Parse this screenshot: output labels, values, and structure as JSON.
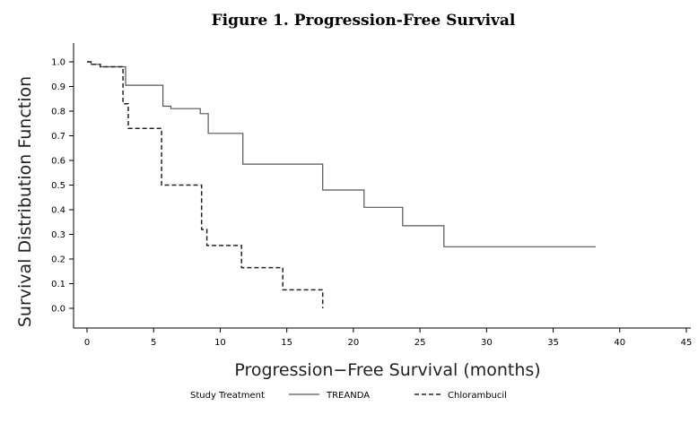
{
  "chart_data": {
    "type": "line",
    "title": "Figure 1.  Progression-Free Survival",
    "xlabel": "Progression−Free Survival (months)",
    "ylabel": "Survival Distribution Function",
    "xlim": [
      0,
      45
    ],
    "ylim": [
      0,
      1.0
    ],
    "xticks": [
      0,
      5,
      10,
      15,
      20,
      25,
      30,
      35,
      40,
      45
    ],
    "yticks": [
      0.0,
      0.1,
      0.2,
      0.3,
      0.4,
      0.5,
      0.6,
      0.7,
      0.8,
      0.9,
      1.0
    ],
    "grid": false,
    "legend": {
      "position": "bottom",
      "title": "Study Treatment"
    },
    "series": [
      {
        "name": "TREANDA",
        "style": "solid",
        "color": "#555555",
        "x": [
          0,
          0.3,
          0.3,
          1.0,
          1.0,
          2.9,
          2.9,
          5.7,
          5.7,
          6.3,
          6.3,
          8.5,
          8.5,
          9.1,
          9.1,
          11.7,
          11.7,
          17.7,
          17.7,
          20.8,
          20.8,
          23.7,
          23.7,
          26.8,
          26.8,
          38.2
        ],
        "y": [
          1.0,
          1.0,
          0.99,
          0.99,
          0.98,
          0.98,
          0.905,
          0.905,
          0.82,
          0.82,
          0.81,
          0.81,
          0.79,
          0.79,
          0.71,
          0.71,
          0.585,
          0.585,
          0.48,
          0.48,
          0.41,
          0.41,
          0.335,
          0.335,
          0.25,
          0.25
        ]
      },
      {
        "name": "Chlorambucil",
        "style": "dashed",
        "color": "#222222",
        "x": [
          0,
          0.3,
          0.3,
          1.0,
          1.0,
          2.7,
          2.7,
          3.1,
          3.1,
          5.6,
          5.6,
          8.6,
          8.6,
          9.0,
          9.0,
          11.6,
          11.6,
          14.7,
          14.7,
          17.7,
          17.7
        ],
        "y": [
          1.0,
          1.0,
          0.99,
          0.99,
          0.98,
          0.98,
          0.83,
          0.83,
          0.73,
          0.73,
          0.5,
          0.5,
          0.32,
          0.32,
          0.255,
          0.255,
          0.165,
          0.165,
          0.075,
          0.075,
          0.0
        ]
      }
    ]
  }
}
